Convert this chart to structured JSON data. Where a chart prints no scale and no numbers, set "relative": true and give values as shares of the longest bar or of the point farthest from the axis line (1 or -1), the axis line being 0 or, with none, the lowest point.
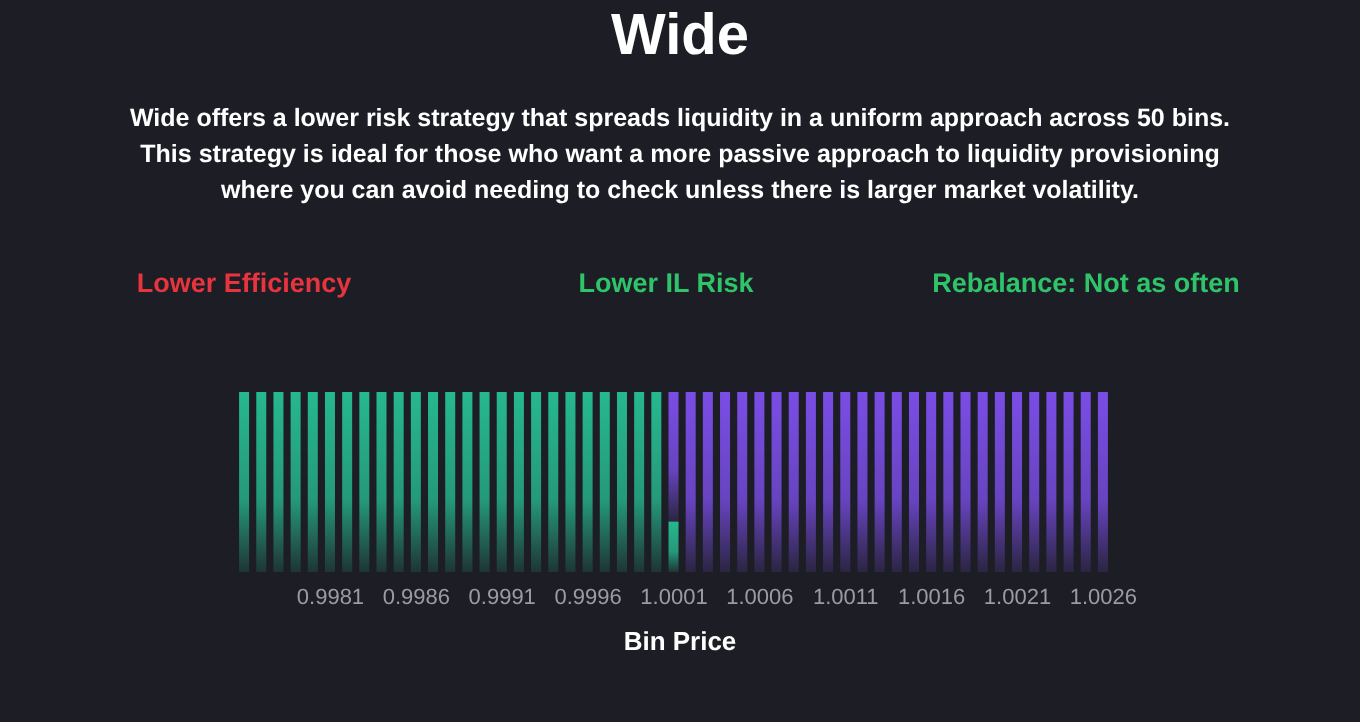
{
  "chart_data": {
    "type": "bar",
    "relative": true,
    "stacked": true,
    "title": "Wide",
    "subtitle": "Wide offers a lower risk strategy that spreads liquidity in a uniform approach across 50 bins. This strategy is ideal for those who want a more passive approach to liquidity provisioning where you can avoid needing to check unless there is larger market volatility.",
    "annotations": [
      "Lower Efficiency",
      "Lower IL Risk",
      "Rebalance: Not as often"
    ],
    "xlabel": "Bin Price",
    "categories": [
      null,
      null,
      null,
      null,
      null,
      "0.9981",
      null,
      null,
      null,
      null,
      "0.9986",
      null,
      null,
      null,
      null,
      "0.9991",
      null,
      null,
      null,
      null,
      "0.9996",
      null,
      null,
      null,
      null,
      "1.0001",
      null,
      null,
      null,
      null,
      "1.0006",
      null,
      null,
      null,
      null,
      "1.0011",
      null,
      null,
      null,
      null,
      "1.0016",
      null,
      null,
      null,
      null,
      "1.0021",
      null,
      null,
      null,
      null,
      "1.0026"
    ],
    "series": [
      {
        "color": "#26b88e",
        "values": [
          1,
          1,
          1,
          1,
          1,
          1,
          1,
          1,
          1,
          1,
          1,
          1,
          1,
          1,
          1,
          1,
          1,
          1,
          1,
          1,
          1,
          1,
          1,
          1,
          1,
          0.28,
          null,
          null,
          null,
          null,
          null,
          null,
          null,
          null,
          null,
          null,
          null,
          null,
          null,
          null,
          null,
          null,
          null,
          null,
          null,
          null,
          null,
          null,
          null,
          null,
          null
        ]
      },
      {
        "color": "#7a4de6",
        "values": [
          null,
          null,
          null,
          null,
          null,
          null,
          null,
          null,
          null,
          null,
          null,
          null,
          null,
          null,
          null,
          null,
          null,
          null,
          null,
          null,
          null,
          null,
          null,
          null,
          null,
          0.72,
          1,
          1,
          1,
          1,
          1,
          1,
          1,
          1,
          1,
          1,
          1,
          1,
          1,
          1,
          1,
          1,
          1,
          1,
          1,
          1,
          1,
          1,
          1,
          1,
          1
        ]
      }
    ]
  }
}
